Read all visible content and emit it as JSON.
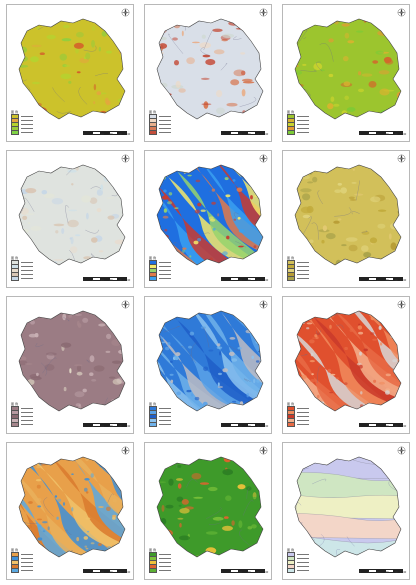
{
  "figure": {
    "panels": [
      {
        "id": "a",
        "theme": "slope-green",
        "colors": [
          "#ccc22b",
          "#e4a63e",
          "#b6d22f",
          "#9acb3a",
          "#7fd344",
          "#d35f2a"
        ]
      },
      {
        "id": "b",
        "theme": "relief-hillshade",
        "colors": [
          "#d9dfe8",
          "#f0d9c4",
          "#e8b08c",
          "#d77a56",
          "#c44e3b",
          "#cfd9d2"
        ]
      },
      {
        "id": "c",
        "theme": "slope-yellowgreen",
        "colors": [
          "#9cc52e",
          "#d7b42f",
          "#c9d32d",
          "#e49a34",
          "#7ccb36",
          "#d4652b"
        ]
      },
      {
        "id": "d",
        "theme": "pale-sediment",
        "colors": [
          "#dfe3df",
          "#cfe0e8",
          "#e8dccd",
          "#d9c6b4",
          "#c7d7e6",
          "#e3e6d8"
        ]
      },
      {
        "id": "e",
        "theme": "geology-blue",
        "colors": [
          "#1f6fe0",
          "#f4e96a",
          "#96d36d",
          "#e07a4a",
          "#3aa0f0",
          "#c93b2f"
        ]
      },
      {
        "id": "f",
        "theme": "mustard-lithology",
        "colors": [
          "#d2c05a",
          "#c2ab3c",
          "#dfd27a",
          "#b89d36",
          "#a9a24a",
          "#e2c972"
        ]
      },
      {
        "id": "g",
        "theme": "mauve-drainage",
        "colors": [
          "#9b7c84",
          "#b69aa1",
          "#8a6a72",
          "#c9b1b5",
          "#a5858b",
          "#e3dcc9"
        ]
      },
      {
        "id": "h",
        "theme": "blue-buffer",
        "colors": [
          "#2f7ad8",
          "#5aa2e8",
          "#1e5ec8",
          "#8cc3f0",
          "#6fb2ea",
          "#bcbcc4"
        ]
      },
      {
        "id": "i",
        "theme": "red-buffer",
        "colors": [
          "#e0502e",
          "#f08a5c",
          "#c93a2a",
          "#f4b08c",
          "#e86a44",
          "#d7d7d7"
        ]
      },
      {
        "id": "j",
        "theme": "orange-landuse",
        "colors": [
          "#e8a04a",
          "#3d8fd8",
          "#f0c26a",
          "#d97a2e",
          "#5aa8e0",
          "#e9b05c"
        ]
      },
      {
        "id": "k",
        "theme": "green-vegetation",
        "colors": [
          "#3e9a2a",
          "#7cc23a",
          "#f0c23a",
          "#e0632e",
          "#5cb033",
          "#2c7f24"
        ]
      },
      {
        "id": "l",
        "theme": "pastel-zoning",
        "colors": [
          "#c9c9ee",
          "#cfe6c2",
          "#eef0c4",
          "#f3d6c8",
          "#cde6e8",
          "#e4e0f2"
        ]
      }
    ],
    "legend": {
      "title": "图 例"
    },
    "scale_ticks": [
      "0",
      "5",
      "10",
      "20",
      "30",
      "40"
    ],
    "north_arrow": "north-arrow-icon"
  }
}
